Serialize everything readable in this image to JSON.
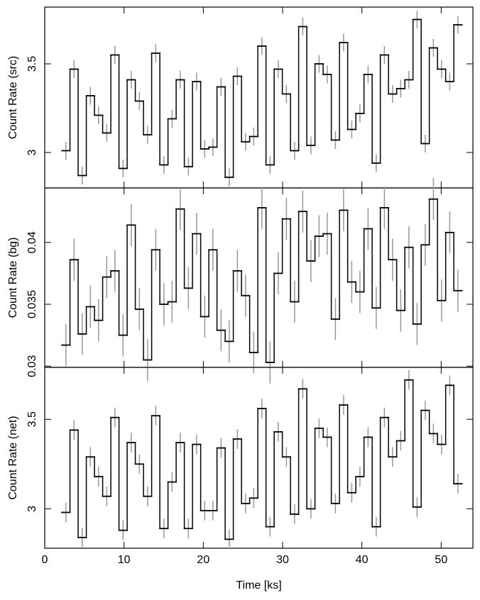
{
  "chart_data": [
    {
      "type": "line",
      "ylabel": "Count Rate (src)",
      "color": "#000000",
      "error_color": "#999999",
      "error": 0.05,
      "xlim": [
        0,
        54
      ],
      "xticks": [
        0,
        10,
        20,
        30,
        40,
        50
      ],
      "ylim": [
        2.8,
        3.82
      ],
      "yticks": [
        3,
        3.5
      ],
      "x": [
        2.67,
        3.7,
        4.73,
        5.76,
        6.79,
        7.82,
        8.85,
        9.88,
        10.91,
        11.94,
        12.97,
        14,
        15.03,
        16.06,
        17.09,
        18.12,
        19.15,
        20.18,
        21.21,
        22.24,
        23.27,
        24.3,
        25.33,
        26.36,
        27.39,
        28.42,
        29.45,
        30.48,
        31.51,
        32.54,
        33.57,
        34.6,
        35.63,
        36.66,
        37.69,
        38.72,
        39.75,
        40.78,
        41.81,
        42.84,
        43.87,
        44.9,
        45.93,
        46.96,
        47.99,
        49.02,
        50.05,
        51.08,
        52.11
      ],
      "values": [
        3.01,
        3.47,
        2.87,
        3.32,
        3.21,
        3.11,
        3.55,
        2.91,
        3.41,
        3.29,
        3.1,
        3.56,
        2.93,
        3.19,
        3.41,
        2.92,
        3.4,
        3.02,
        3.03,
        3.37,
        2.86,
        3.43,
        3.06,
        3.09,
        3.6,
        2.93,
        3.47,
        3.33,
        3.01,
        3.71,
        3.04,
        3.5,
        3.44,
        3.07,
        3.62,
        3.13,
        3.22,
        3.44,
        2.94,
        3.55,
        3.33,
        3.36,
        3.41,
        3.75,
        3.05,
        3.59,
        3.47,
        3.4,
        3.72
      ]
    },
    {
      "type": "line",
      "ylabel": "Count Rate (bg)",
      "color": "#000000",
      "error_color": "#999999",
      "error": 0.0017,
      "xlim": [
        0,
        54
      ],
      "xticks": [
        0,
        10,
        20,
        30,
        40,
        50
      ],
      "ylim": [
        0.0299,
        0.0444
      ],
      "yticks": [
        0.03,
        0.035,
        0.04
      ],
      "x": [
        2.67,
        3.7,
        4.73,
        5.76,
        6.79,
        7.82,
        8.85,
        9.88,
        10.91,
        11.94,
        12.97,
        14,
        15.03,
        16.06,
        17.09,
        18.12,
        19.15,
        20.18,
        21.21,
        22.24,
        23.27,
        24.3,
        25.33,
        26.36,
        27.39,
        28.42,
        29.45,
        30.48,
        31.51,
        32.54,
        33.57,
        34.6,
        35.63,
        36.66,
        37.69,
        38.72,
        39.75,
        40.78,
        41.81,
        42.84,
        43.87,
        44.9,
        45.93,
        46.96,
        47.99,
        49.02,
        50.05,
        51.08,
        52.11
      ],
      "values": [
        0.0317,
        0.0386,
        0.0326,
        0.0348,
        0.0337,
        0.0372,
        0.0377,
        0.0325,
        0.0414,
        0.0346,
        0.0305,
        0.0394,
        0.035,
        0.0352,
        0.0427,
        0.0363,
        0.0407,
        0.034,
        0.0394,
        0.0329,
        0.032,
        0.0377,
        0.0357,
        0.0311,
        0.0428,
        0.0303,
        0.0375,
        0.0419,
        0.0352,
        0.0425,
        0.0385,
        0.0405,
        0.0407,
        0.0338,
        0.0426,
        0.0368,
        0.036,
        0.0411,
        0.0347,
        0.0428,
        0.0386,
        0.0345,
        0.0396,
        0.0334,
        0.0398,
        0.0435,
        0.0353,
        0.0408,
        0.0361
      ]
    },
    {
      "type": "line",
      "ylabel": "Count Rate (net)",
      "xlabel": "Time [ks]",
      "color": "#000000",
      "error_color": "#999999",
      "error": 0.055,
      "xlim": [
        0,
        54
      ],
      "xticks": [
        0,
        10,
        20,
        30,
        40,
        50
      ],
      "ylim": [
        2.78,
        3.79
      ],
      "yticks": [
        3,
        3.5
      ],
      "x": [
        2.67,
        3.7,
        4.73,
        5.76,
        6.79,
        7.82,
        8.85,
        9.88,
        10.91,
        11.94,
        12.97,
        14,
        15.03,
        16.06,
        17.09,
        18.12,
        19.15,
        20.18,
        21.21,
        22.24,
        23.27,
        24.3,
        25.33,
        26.36,
        27.39,
        28.42,
        29.45,
        30.48,
        31.51,
        32.54,
        33.57,
        34.6,
        35.63,
        36.66,
        37.69,
        38.72,
        39.75,
        40.78,
        41.81,
        42.84,
        43.87,
        44.9,
        45.93,
        46.96,
        47.99,
        49.02,
        50.05,
        51.08,
        52.11
      ],
      "values": [
        2.98,
        3.44,
        2.84,
        3.29,
        3.18,
        3.07,
        3.51,
        2.88,
        3.37,
        3.25,
        3.07,
        3.52,
        2.89,
        3.15,
        3.37,
        2.89,
        3.36,
        2.99,
        2.99,
        3.34,
        2.83,
        3.39,
        3.03,
        3.06,
        3.56,
        2.9,
        3.43,
        3.29,
        2.97,
        3.67,
        3.0,
        3.45,
        3.4,
        3.03,
        3.58,
        3.09,
        3.18,
        3.4,
        2.9,
        3.51,
        3.29,
        3.38,
        3.72,
        3.01,
        3.55,
        3.42,
        3.36,
        3.69,
        3.14
      ]
    }
  ]
}
